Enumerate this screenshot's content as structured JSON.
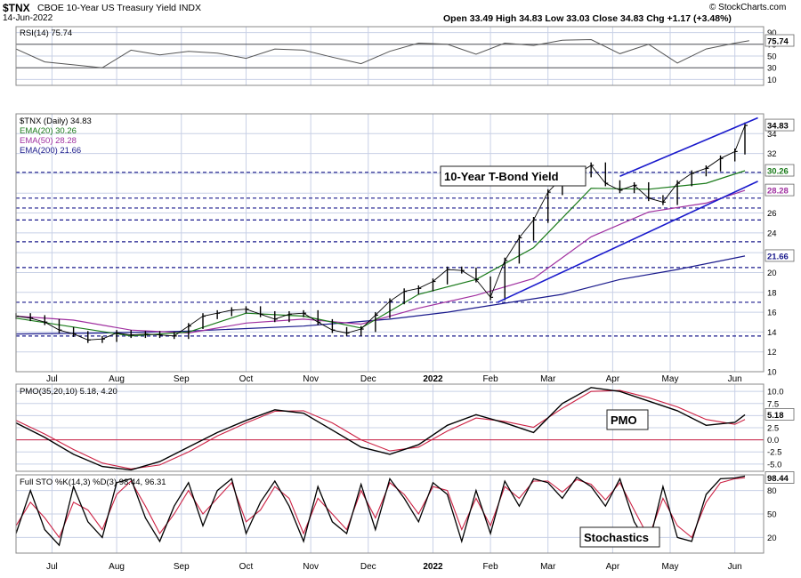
{
  "header": {
    "symbol": "$TNX",
    "description": "CBOE 10-Year US Treasury Yield INDX",
    "date": "14-Jun-2022",
    "ohlc": "Open 33.49  High 34.83  Low 33.03  Close 34.83  Chg +1.17 (+3.48%)",
    "brand": "© StockCharts.com"
  },
  "colors": {
    "price": "#000000",
    "ema20": "#1a7a1a",
    "ema50": "#a030a0",
    "ema200": "#1a1a8c",
    "trendline": "#1a1acc",
    "support": "#1a1a8c",
    "pmo_signal": "#cc2244",
    "grid": "#c8d0e6"
  },
  "chart_data": [
    {
      "type": "line",
      "name": "RSI(14)",
      "label": "RSI(14) 75.74",
      "ylim": [
        0,
        100
      ],
      "yticks": [
        10,
        30,
        50,
        70,
        90
      ],
      "last_value": "75.74",
      "x_weeks": [
        0,
        2,
        4,
        6,
        8,
        10,
        12,
        14,
        16,
        18,
        20,
        22,
        24,
        26,
        28,
        30,
        32,
        34,
        36,
        38,
        40,
        42,
        44,
        46,
        48,
        50,
        51
      ],
      "values": [
        62,
        40,
        35,
        30,
        60,
        52,
        58,
        55,
        46,
        62,
        60,
        48,
        37,
        58,
        72,
        70,
        53,
        72,
        68,
        77,
        78,
        54,
        70,
        38,
        62,
        72,
        76
      ]
    },
    {
      "type": "line",
      "title": "$TNX (Daily) 34.83",
      "annotation": "10-Year T-Bond Yield",
      "ylim": [
        10,
        36
      ],
      "yticks": [
        10,
        12,
        14,
        16,
        18,
        20,
        22,
        24,
        26,
        28,
        30,
        32,
        34
      ],
      "xlabels": [
        "Jul",
        "Aug",
        "Sep",
        "Oct",
        "Nov",
        "Dec",
        "2022",
        "Feb",
        "Mar",
        "Apr",
        "May",
        "Jun"
      ],
      "last_price_label": "34.83",
      "support_levels": [
        30.1,
        27.5,
        26.5,
        25.3,
        23.1,
        20.5,
        17.0,
        13.6
      ],
      "price": {
        "x_weeks": [
          0,
          1,
          2,
          3,
          4,
          5,
          6,
          7,
          8,
          9,
          10,
          11,
          12,
          13,
          14,
          15,
          16,
          17,
          18,
          19,
          20,
          21,
          22,
          23,
          24,
          25,
          26,
          27,
          28,
          29,
          30,
          31,
          32,
          33,
          34,
          35,
          36,
          37,
          38,
          39,
          40,
          41,
          42,
          43,
          44,
          45,
          46,
          47,
          48,
          49,
          50,
          50.7
        ],
        "values": [
          15.6,
          15.4,
          15.0,
          14.2,
          13.8,
          13.2,
          13.3,
          13.9,
          13.7,
          13.8,
          13.7,
          13.6,
          14.6,
          15.6,
          15.9,
          16.2,
          16.3,
          15.8,
          15.3,
          15.8,
          15.9,
          15.0,
          14.2,
          13.9,
          14.3,
          15.7,
          17.1,
          18.1,
          18.4,
          19.1,
          20.3,
          20.2,
          19.3,
          17.5,
          21.2,
          23.5,
          25.3,
          28.1,
          29.6,
          29.9,
          30.8,
          29.0,
          28.3,
          28.8,
          27.5,
          27.1,
          29.0,
          30.0,
          30.5,
          31.5,
          32.2,
          34.83
        ]
      },
      "ema20": {
        "label": "EMA(20) 30.26",
        "last": "30.26",
        "x_weeks": [
          0,
          4,
          8,
          12,
          16,
          20,
          24,
          28,
          32,
          36,
          40,
          44,
          48,
          50.7
        ],
        "values": [
          15.4,
          14.5,
          13.6,
          14.0,
          15.9,
          15.6,
          14.4,
          17.8,
          19.3,
          22.5,
          28.5,
          28.4,
          29.0,
          30.26
        ]
      },
      "ema50": {
        "label": "EMA(50) 28.28",
        "last": "28.28",
        "x_weeks": [
          0,
          4,
          8,
          12,
          16,
          20,
          24,
          28,
          32,
          36,
          40,
          44,
          48,
          50.7
        ],
        "values": [
          15.6,
          15.2,
          14.2,
          13.9,
          14.9,
          15.3,
          14.8,
          16.4,
          17.7,
          19.4,
          23.6,
          26.1,
          27.0,
          28.28
        ]
      },
      "ema200": {
        "label": "EMA(200) 21.66",
        "last": "21.66",
        "x_weeks": [
          0,
          6,
          12,
          20,
          26,
          30,
          34,
          38,
          42,
          46,
          50.7
        ],
        "values": [
          13.8,
          13.9,
          14.1,
          14.6,
          15.3,
          16.0,
          16.9,
          17.8,
          19.3,
          20.3,
          21.66
        ]
      },
      "right_labels": [
        "34.83",
        "30.26",
        "28.28",
        "21.66"
      ]
    },
    {
      "type": "line",
      "name": "PMO(35,20,10)",
      "label": "PMO(35,20,10) 5.18, 4.20",
      "annotation": "PMO",
      "ylim": [
        -6.5,
        11.5
      ],
      "yticks": [
        -5.0,
        -2.5,
        0.0,
        2.5,
        5.0,
        7.5,
        10.0
      ],
      "pmo_last": "5.18",
      "signal_last": "4.20",
      "x_weeks": [
        0,
        2,
        4,
        6,
        8,
        10,
        12,
        14,
        16,
        18,
        20,
        22,
        24,
        26,
        28,
        30,
        32,
        34,
        36,
        38,
        40,
        42,
        44,
        46,
        48,
        50,
        50.7
      ],
      "pmo": [
        3.5,
        0.5,
        -3.0,
        -5.5,
        -6.2,
        -4.5,
        -1.5,
        1.5,
        4.0,
        6.2,
        5.5,
        2.0,
        -1.5,
        -3.0,
        -1.0,
        3.0,
        5.2,
        3.5,
        1.5,
        7.5,
        10.8,
        10.0,
        8.0,
        6.0,
        3.0,
        3.6,
        5.18
      ],
      "signal": [
        4.0,
        1.2,
        -2.0,
        -4.8,
        -6.0,
        -5.2,
        -2.5,
        0.8,
        3.5,
        5.9,
        6.0,
        3.5,
        0.0,
        -2.3,
        -1.5,
        1.8,
        4.5,
        3.8,
        2.6,
        6.5,
        10.0,
        10.2,
        8.7,
        6.8,
        4.2,
        3.2,
        4.2
      ]
    },
    {
      "type": "line",
      "name": "Full STO %K(14,3) %D(3)",
      "label": "Full STO %K(14,3) %D(3) 98.44, 96.31",
      "annotation": "Stochastics",
      "ylim": [
        0,
        100
      ],
      "yticks": [
        20,
        50,
        80
      ],
      "k_last": "98.44",
      "d_last": "96.31",
      "x_weeks": [
        0,
        1,
        2,
        3,
        4,
        5,
        6,
        7,
        8,
        9,
        10,
        11,
        12,
        13,
        14,
        15,
        16,
        17,
        18,
        19,
        20,
        21,
        22,
        23,
        24,
        25,
        26,
        27,
        28,
        29,
        30,
        31,
        32,
        33,
        34,
        35,
        36,
        37,
        38,
        39,
        40,
        41,
        42,
        43,
        44,
        45,
        46,
        47,
        48,
        49,
        50,
        50.7
      ],
      "k": [
        25,
        80,
        30,
        10,
        85,
        40,
        20,
        90,
        95,
        45,
        15,
        60,
        90,
        35,
        80,
        95,
        25,
        65,
        92,
        60,
        15,
        85,
        40,
        25,
        88,
        30,
        95,
        70,
        40,
        90,
        75,
        15,
        80,
        25,
        92,
        60,
        95,
        90,
        70,
        97,
        85,
        60,
        95,
        40,
        10,
        85,
        20,
        15,
        75,
        95,
        96,
        98.44
      ],
      "d": [
        35,
        65,
        45,
        20,
        65,
        55,
        30,
        75,
        92,
        60,
        25,
        50,
        80,
        50,
        70,
        90,
        40,
        55,
        85,
        70,
        25,
        70,
        50,
        30,
        80,
        45,
        90,
        75,
        50,
        85,
        80,
        30,
        70,
        35,
        85,
        70,
        92,
        92,
        78,
        94,
        88,
        68,
        90,
        55,
        20,
        70,
        35,
        20,
        65,
        90,
        95,
        96.31
      ]
    }
  ]
}
